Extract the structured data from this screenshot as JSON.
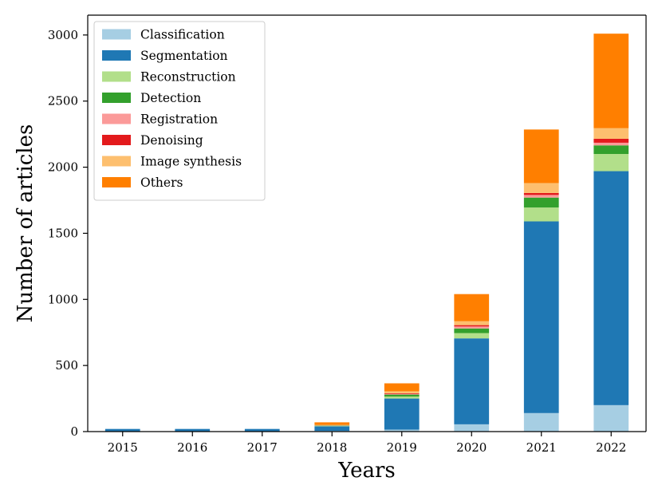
{
  "chart_data": {
    "type": "bar",
    "stacked": true,
    "title": "",
    "xlabel": "Years",
    "ylabel": "Number of articles",
    "ylim": [
      0,
      3150
    ],
    "yticks": [
      0,
      500,
      1000,
      1500,
      2000,
      2500,
      3000
    ],
    "grid": false,
    "legend_position": "top-left",
    "categories": [
      "2015",
      "2016",
      "2017",
      "2018",
      "2019",
      "2020",
      "2021",
      "2022"
    ],
    "series": [
      {
        "name": "Classification",
        "color": "#a6cee3",
        "values": [
          2,
          3,
          3,
          5,
          15,
          55,
          140,
          200
        ]
      },
      {
        "name": "Segmentation",
        "color": "#1f78b4",
        "values": [
          18,
          17,
          17,
          35,
          235,
          650,
          1450,
          1770
        ]
      },
      {
        "name": "Reconstruction",
        "color": "#b2df8a",
        "values": [
          0,
          0,
          0,
          3,
          15,
          40,
          105,
          130
        ]
      },
      {
        "name": "Detection",
        "color": "#33a02c",
        "values": [
          0,
          0,
          0,
          2,
          15,
          35,
          75,
          65
        ]
      },
      {
        "name": "Registration",
        "color": "#fb9a99",
        "values": [
          0,
          0,
          0,
          1,
          5,
          15,
          20,
          20
        ]
      },
      {
        "name": "Denoising",
        "color": "#e31a1c",
        "values": [
          0,
          0,
          0,
          1,
          5,
          10,
          15,
          30
        ]
      },
      {
        "name": "Image synthesis",
        "color": "#fdbf6f",
        "values": [
          0,
          0,
          0,
          3,
          15,
          30,
          75,
          80
        ]
      },
      {
        "name": "Others",
        "color": "#ff7f00",
        "values": [
          0,
          0,
          0,
          20,
          60,
          205,
          405,
          715
        ]
      }
    ]
  }
}
